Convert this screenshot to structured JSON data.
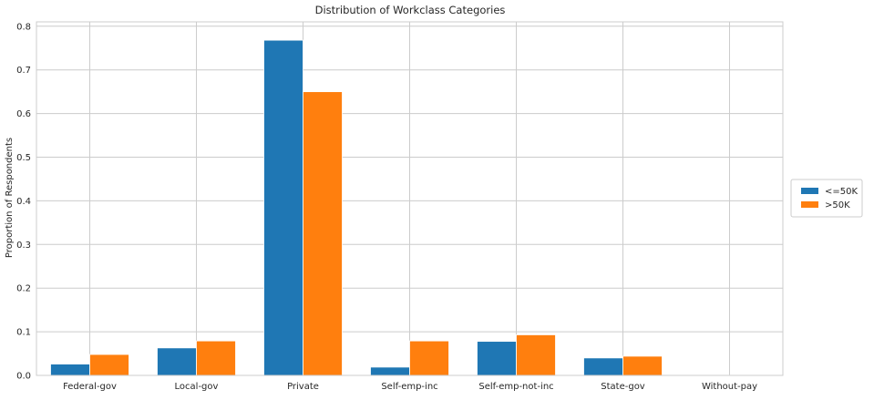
{
  "chart_data": {
    "type": "bar",
    "title": "Distribution of Workclass Categories",
    "xlabel": "",
    "ylabel": "Proportion of Respondents",
    "categories": [
      "Federal-gov",
      "Local-gov",
      "Private",
      "Self-emp-inc",
      "Self-emp-not-inc",
      "State-gov",
      "Without-pay"
    ],
    "series": [
      {
        "name": "<=50K",
        "color": "#1f77b4",
        "values": [
          0.026,
          0.063,
          0.768,
          0.019,
          0.078,
          0.04,
          0.0005
        ]
      },
      {
        "name": ">50K",
        "color": "#ff7f0e",
        "values": [
          0.048,
          0.079,
          0.65,
          0.079,
          0.093,
          0.044,
          0.0
        ]
      }
    ],
    "ylim": [
      0,
      0.81
    ],
    "yticks": [
      0.0,
      0.1,
      0.2,
      0.3,
      0.4,
      0.5,
      0.6,
      0.7,
      0.8
    ],
    "ytick_labels": [
      "0.0",
      "0.1",
      "0.2",
      "0.3",
      "0.4",
      "0.5",
      "0.6",
      "0.7",
      "0.8"
    ],
    "grid": true,
    "legend_position": "right"
  }
}
